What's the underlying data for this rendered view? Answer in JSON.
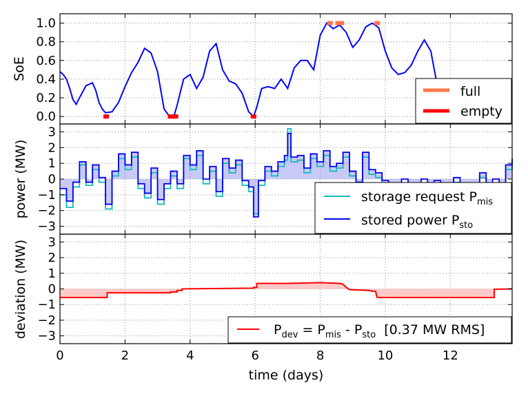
{
  "chart_data": [
    {
      "type": "line",
      "ylabel": "SoE",
      "xlim": [
        0,
        13.9
      ],
      "ylim": [
        -0.08,
        1.1
      ],
      "yticks": [
        "0.0",
        "0.2",
        "0.4",
        "0.6",
        "0.8",
        "1.0"
      ],
      "grid": true,
      "legend_position": "lower-right",
      "series": [
        {
          "name": "SoE",
          "color": "#0000ff",
          "x": [
            0,
            0.1,
            0.2,
            0.3,
            0.4,
            0.5,
            0.6,
            0.8,
            1.0,
            1.1,
            1.2,
            1.3,
            1.4,
            1.6,
            1.8,
            2.0,
            2.2,
            2.4,
            2.6,
            2.8,
            3.0,
            3.1,
            3.2,
            3.35,
            3.5,
            3.6,
            3.8,
            4.0,
            4.2,
            4.4,
            4.6,
            4.8,
            5.0,
            5.2,
            5.4,
            5.6,
            5.8,
            5.95,
            6.05,
            6.2,
            6.4,
            6.6,
            6.8,
            7.0,
            7.2,
            7.4,
            7.6,
            7.8,
            8.0,
            8.2,
            8.4,
            8.6,
            8.8,
            9.0,
            9.2,
            9.4,
            9.6,
            9.8,
            10.0,
            10.2,
            10.4,
            10.6,
            10.8,
            11.0,
            11.2,
            11.4,
            11.6,
            11.8,
            12.0,
            12.2,
            12.4,
            12.6,
            12.8,
            13.0,
            13.2,
            13.4,
            13.6,
            13.9
          ],
          "y": [
            0.48,
            0.45,
            0.4,
            0.3,
            0.18,
            0.13,
            0.2,
            0.33,
            0.36,
            0.28,
            0.15,
            0.08,
            0.04,
            0.05,
            0.15,
            0.32,
            0.47,
            0.58,
            0.73,
            0.68,
            0.48,
            0.28,
            0.08,
            0.01,
            0.0,
            0.12,
            0.4,
            0.45,
            0.3,
            0.42,
            0.7,
            0.78,
            0.5,
            0.38,
            0.35,
            0.25,
            0.05,
            0.0,
            0.1,
            0.3,
            0.32,
            0.3,
            0.4,
            0.3,
            0.52,
            0.6,
            0.6,
            0.5,
            0.87,
            1.0,
            0.94,
            0.98,
            0.9,
            0.74,
            0.82,
            0.96,
            1.0,
            0.95,
            0.7,
            0.52,
            0.45,
            0.47,
            0.55,
            0.7,
            0.82,
            0.7,
            0.33,
            0.18,
            0.2,
            0.08,
            0.04,
            0.1,
            0.05,
            0.0,
            0.12,
            0.1,
            0.26,
            0.3
          ]
        },
        {
          "name": "full",
          "color": "#ff7744",
          "x": [
            8.3,
            8.55,
            8.65,
            9.75
          ],
          "y": [
            1.0,
            1.0,
            1.0,
            1.0
          ]
        },
        {
          "name": "empty",
          "color": "#ff0000",
          "x": [
            1.42,
            3.4,
            3.45,
            3.55,
            5.95,
            13.0
          ],
          "y": [
            0.0,
            0.0,
            0.0,
            0.0,
            0.0,
            0.0
          ]
        }
      ],
      "legend": [
        "full",
        "empty"
      ]
    },
    {
      "type": "line",
      "ylabel": "power (MW)",
      "xlim": [
        0,
        13.9
      ],
      "ylim": [
        -3.5,
        3.5
      ],
      "yticks": [
        "3",
        "2",
        "1",
        "0",
        "−1",
        "−2",
        "−3"
      ],
      "grid": true,
      "legend_position": "lower-right",
      "series": [
        {
          "name": "storage request P",
          "name_sub": "mis",
          "color": "#11bbbb",
          "x": [
            0,
            0.2,
            0.4,
            0.6,
            0.8,
            1.0,
            1.2,
            1.4,
            1.6,
            1.8,
            2.0,
            2.2,
            2.4,
            2.6,
            2.8,
            3.0,
            3.2,
            3.4,
            3.6,
            3.8,
            4.0,
            4.2,
            4.4,
            4.6,
            4.8,
            5.0,
            5.2,
            5.4,
            5.6,
            5.8,
            5.95,
            6.1,
            6.3,
            6.5,
            6.7,
            6.9,
            7.0,
            7.1,
            7.3,
            7.5,
            7.7,
            7.9,
            8.1,
            8.3,
            8.5,
            8.7,
            8.9,
            9.1,
            9.3,
            9.5,
            9.7,
            9.9,
            10.1,
            10.3,
            10.5,
            10.7,
            10.9,
            11.1,
            11.3,
            11.5,
            11.7,
            11.9,
            12.1,
            12.3,
            12.5,
            12.7,
            12.9,
            13.1,
            13.3,
            13.5,
            13.7,
            13.9
          ],
          "y": [
            -1.0,
            -1.8,
            -0.5,
            0.9,
            -0.4,
            0.6,
            -0.2,
            -1.9,
            0.2,
            1.3,
            0.6,
            1.4,
            -0.6,
            -1.2,
            0.4,
            -1.6,
            -0.6,
            0.2,
            -0.6,
            1.3,
            0.6,
            1.5,
            -0.3,
            0.5,
            -1.1,
            1.0,
            0.4,
            0.9,
            -0.4,
            -0.8,
            -2.2,
            -0.4,
            0.5,
            0.2,
            0.8,
            1.2,
            3.2,
            1.1,
            1.2,
            0.4,
            1.3,
            0.8,
            1.5,
            0.5,
            0.7,
            1.4,
            0.2,
            -0.5,
            1.4,
            0.3,
            0.1,
            -0.4,
            -1.3,
            -0.6,
            -0.3,
            -1.6,
            -0.9,
            -0.3,
            -1.6,
            -0.4,
            -0.9,
            -1.7,
            -0.2,
            -0.8,
            -1.4,
            -0.6,
            0.1,
            -0.7,
            -0.3,
            -0.9,
            0.6,
            1.2
          ]
        },
        {
          "name": "stored power P",
          "name_sub": "sto",
          "color": "#0000ee",
          "x": [
            0,
            0.2,
            0.4,
            0.6,
            0.8,
            1.0,
            1.2,
            1.4,
            1.6,
            1.8,
            2.0,
            2.2,
            2.4,
            2.6,
            2.8,
            3.0,
            3.2,
            3.4,
            3.6,
            3.8,
            4.0,
            4.2,
            4.4,
            4.6,
            4.8,
            5.0,
            5.2,
            5.4,
            5.6,
            5.8,
            5.95,
            6.1,
            6.3,
            6.5,
            6.7,
            6.9,
            7.0,
            7.1,
            7.3,
            7.5,
            7.7,
            7.9,
            8.1,
            8.3,
            8.5,
            8.7,
            8.9,
            9.1,
            9.3,
            9.5,
            9.7,
            9.9,
            10.1,
            10.3,
            10.5,
            10.7,
            10.9,
            11.1,
            11.3,
            11.5,
            11.7,
            11.9,
            12.1,
            12.3,
            12.5,
            12.7,
            12.9,
            13.1,
            13.3,
            13.5,
            13.7,
            13.9
          ],
          "y": [
            -0.6,
            -1.4,
            -0.2,
            1.1,
            -0.2,
            0.9,
            0.1,
            -1.6,
            0.5,
            1.6,
            0.9,
            1.7,
            -0.3,
            -0.9,
            0.7,
            -1.3,
            -0.3,
            0.5,
            -0.3,
            1.5,
            0.9,
            1.8,
            0.0,
            0.8,
            -0.8,
            1.3,
            0.7,
            1.2,
            -0.1,
            -0.5,
            -2.4,
            -0.1,
            0.8,
            0.5,
            1.1,
            1.5,
            2.9,
            1.4,
            1.5,
            0.7,
            1.6,
            1.1,
            1.8,
            0.8,
            1.0,
            1.7,
            0.5,
            -0.2,
            1.7,
            0.6,
            0.4,
            -0.1,
            -1.0,
            -0.3,
            0.0,
            -1.3,
            -0.6,
            0.0,
            -1.3,
            -0.1,
            -0.6,
            -1.4,
            0.1,
            -0.5,
            -1.1,
            -0.3,
            0.4,
            -0.4,
            0.0,
            -0.6,
            0.9,
            1.3
          ]
        }
      ],
      "legend": [
        "storage request P",
        "stored power P"
      ]
    },
    {
      "type": "line",
      "ylabel": "deviation (MW)",
      "xlabel": "time (days)",
      "xlim": [
        0,
        13.9
      ],
      "ylim": [
        -3.5,
        3.5
      ],
      "xticks": [
        "0",
        "2",
        "4",
        "6",
        "8",
        "10",
        "12"
      ],
      "yticks": [
        "3",
        "2",
        "1",
        "0",
        "−1",
        "−2",
        "−3"
      ],
      "grid": true,
      "legend_position": "lower-right",
      "series": [
        {
          "name": "P",
          "name_sub": "dev",
          "color": "#ff0000",
          "x": [
            0,
            1.45,
            1.45,
            2.5,
            3.4,
            3.4,
            3.6,
            3.6,
            3.75,
            3.75,
            5.95,
            5.95,
            6.05,
            6.05,
            7.0,
            8.0,
            8.6,
            8.7,
            8.8,
            8.9,
            9.5,
            9.6,
            9.7,
            9.75,
            9.9,
            9.9,
            13.1,
            13.1,
            13.35,
            13.35,
            13.9
          ],
          "y": [
            -0.55,
            -0.55,
            -0.25,
            -0.25,
            -0.25,
            -0.2,
            -0.2,
            -0.1,
            -0.1,
            0.0,
            0.05,
            0.1,
            0.1,
            0.35,
            0.35,
            0.4,
            0.35,
            0.3,
            0.1,
            -0.05,
            -0.1,
            -0.15,
            -0.15,
            -0.55,
            -0.55,
            -0.55,
            -0.55,
            -0.55,
            -0.55,
            -0.02,
            0.0
          ]
        }
      ],
      "legend_text": {
        "pdev": "P",
        "dev_sub": "dev",
        "eq": " = P",
        "mis_sub": "mis",
        "minus": " - P",
        "sto_sub": "sto",
        "rms": "  [0.37 MW RMS]"
      }
    }
  ],
  "colors": {
    "soe_line": "#0000ff",
    "soe_line_faded": "#b3b3ff",
    "full_marker": "#ff7744",
    "empty_marker": "#ff0000",
    "power_request": "#11bbbb",
    "power_stored": "#0000ee",
    "power_fill": "#8888ee",
    "deviation": "#ff0000",
    "deviation_fill": "#ffbbbb"
  }
}
